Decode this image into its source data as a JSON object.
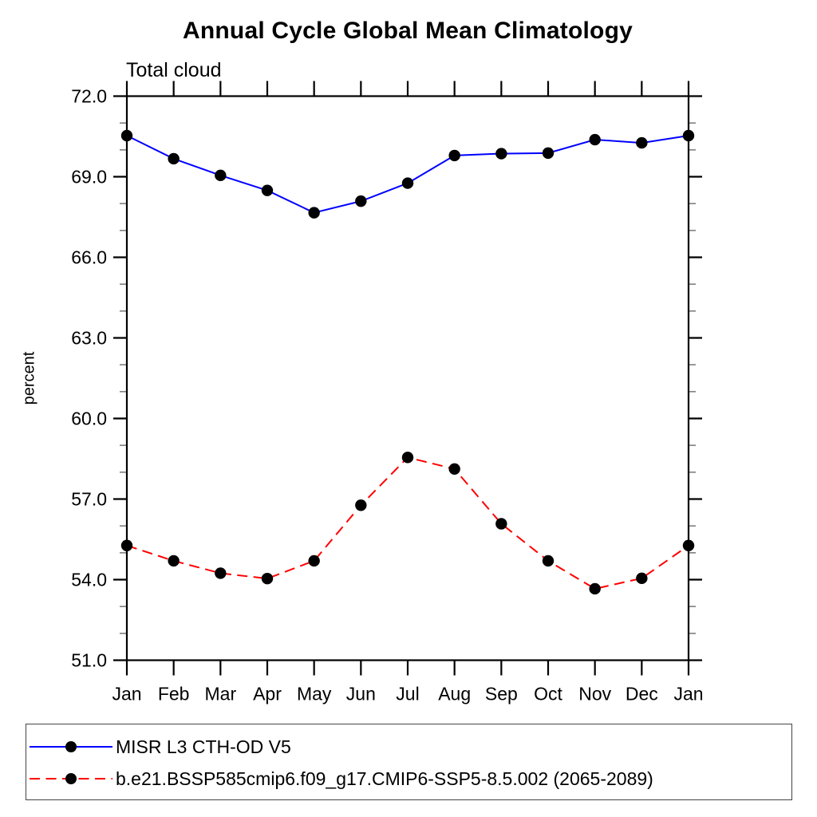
{
  "title": "Annual Cycle Global Mean Climatology",
  "subtitle": "Total cloud",
  "chart_data": {
    "type": "line",
    "title": "Annual Cycle Global Mean Climatology",
    "subtitle": "Total cloud",
    "ylabel": "percent",
    "x": [
      "Jan",
      "Feb",
      "Mar",
      "Apr",
      "May",
      "Jun",
      "Jul",
      "Aug",
      "Sep",
      "Oct",
      "Nov",
      "Dec",
      "Jan"
    ],
    "ylim": [
      51.0,
      72.0
    ],
    "y_major_ticks": [
      51,
      54,
      57,
      60,
      63,
      66,
      69,
      72
    ],
    "y_tick_labels": [
      "51.0",
      "54.0",
      "57.0",
      "60.0",
      "63.0",
      "66.0",
      "69.0",
      "72.0"
    ],
    "y_minor_step": 1.0,
    "grid": false,
    "legend_position": "bottom",
    "marker": "filled-circle",
    "marker_color": "#000000",
    "series": [
      {
        "name": "MISR L3 CTH-OD V5",
        "color": "#0000ff",
        "line_style": "solid",
        "values": [
          70.53,
          69.67,
          69.05,
          68.49,
          67.66,
          68.09,
          68.76,
          69.79,
          69.86,
          69.88,
          70.38,
          70.26,
          70.53
        ]
      },
      {
        "name": "b.e21.BSSP585cmip6.f09_g17.CMIP6-SSP5-8.5.002 (2065-2089)",
        "color": "#ff0000",
        "line_style": "dashed",
        "values": [
          55.27,
          54.7,
          54.24,
          54.04,
          54.7,
          56.77,
          58.55,
          58.12,
          56.08,
          54.7,
          53.66,
          54.05,
          55.27
        ]
      }
    ]
  }
}
